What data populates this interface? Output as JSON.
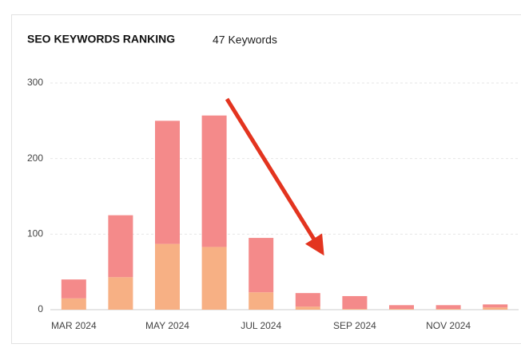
{
  "chart_data": {
    "type": "stacked-bar",
    "title": "SEO KEYWORDS RANKING",
    "subtitle": "47 Keywords",
    "categories": [
      "MAR 2024",
      null,
      "MAY 2024",
      null,
      "JUL 2024",
      null,
      "SEP 2024",
      null,
      "NOV 2024",
      null
    ],
    "series": [
      {
        "color": "#f7b084",
        "values": [
          15,
          43,
          87,
          83,
          23,
          4,
          1,
          1,
          1,
          3
        ]
      },
      {
        "color": "#f48a8a",
        "values": [
          25,
          82,
          163,
          174,
          72,
          18,
          17,
          5,
          5,
          4
        ]
      }
    ],
    "ylim": [
      0,
      300
    ],
    "yticks": [
      0,
      100,
      200,
      300
    ],
    "grid": true
  }
}
